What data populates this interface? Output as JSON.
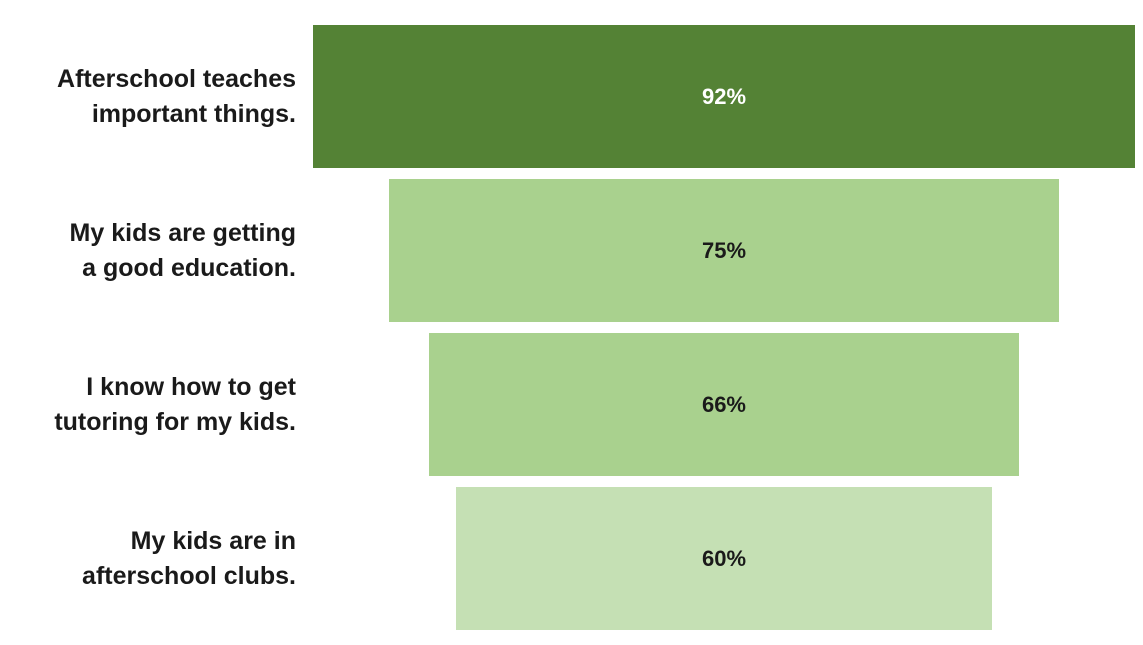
{
  "chart_data": {
    "type": "bar",
    "orientation": "horizontal-centered",
    "title": "",
    "xlabel": "",
    "ylabel": "",
    "xlim": [
      0,
      100
    ],
    "categories": [
      "Afterschool teaches\nimportant things.",
      "My kids are getting\na good education.",
      "I know how to get\ntutoring for my kids.",
      "My kids are in\nafterschool clubs."
    ],
    "values": [
      92,
      75,
      66,
      60
    ],
    "value_labels": [
      "92%",
      "75%",
      "66%",
      "60%"
    ],
    "colors": [
      "#548235",
      "#a9d18e",
      "#a9d18e",
      "#c5e0b4"
    ],
    "label_colors": [
      "#ffffff",
      "#1a1a1a",
      "#1a1a1a",
      "#1a1a1a"
    ],
    "grid": false,
    "legend": "none"
  }
}
